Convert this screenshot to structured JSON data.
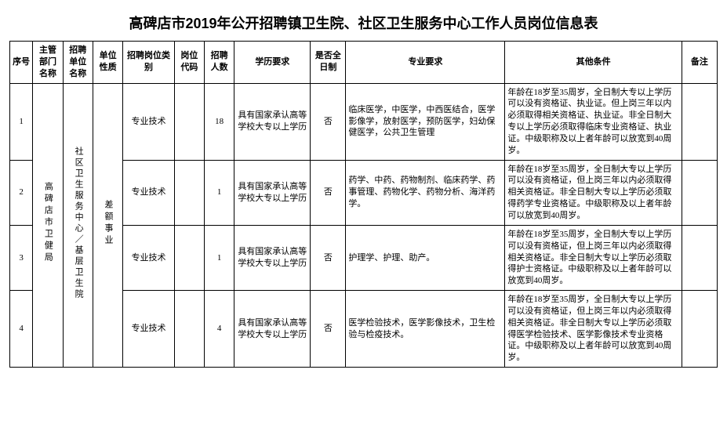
{
  "title": "高碑店市2019年公开招聘镇卫生院、社区卫生服务中心工作人员岗位信息表",
  "headers": {
    "idx": "序号",
    "dept": "主管部门名称",
    "unit": "招聘单位名称",
    "nature": "单位性质",
    "cat": "招聘岗位类别",
    "code": "岗位代码",
    "num": "招聘人数",
    "edu": "学历要求",
    "full": "是否全日制",
    "major": "专业要求",
    "other": "其他条件",
    "remark": "备注"
  },
  "merged": {
    "dept": "高碑店市卫健局",
    "unit": "社区卫生服务中心／基层卫生院",
    "nature": "差额事业"
  },
  "rows": [
    {
      "idx": "1",
      "cat": "专业技术",
      "code": "",
      "num": "18",
      "edu": "具有国家承认高等学校大专以上学历",
      "full": "否",
      "major": "临床医学，中医学，中西医结合，医学影像学，放射医学，预防医学，妇幼保健医学，公共卫生管理",
      "other": "年龄在18岁至35周岁，全日制大专以上学历可以没有资格证、执业证。但上岗三年以内必须取得相关资格证、执业证。非全日制大专以上学历必须取得临床专业资格证、执业证。中级职称及以上者年龄可以放宽到40周岁。",
      "remark": ""
    },
    {
      "idx": "2",
      "cat": "专业技术",
      "code": "",
      "num": "1",
      "edu": "具有国家承认高等学校大专以上学历",
      "full": "否",
      "major": "药学、中药、药物制剂、临床药学、药事管理、药物化学、药物分析、海洋药学。",
      "other": "年龄在18岁至35周岁，全日制大专以上学历可以没有资格证，但上岗三年以内必须取得相关资格证。非全日制大专以上学历必须取得药学专业资格证。中级职称及以上者年龄可以放宽到40周岁。",
      "remark": ""
    },
    {
      "idx": "3",
      "cat": "专业技术",
      "code": "",
      "num": "1",
      "edu": "具有国家承认高等学校大专以上学历",
      "full": "否",
      "major": "护理学、护理、助产。",
      "other": "年龄在18岁至35周岁，全日制大专以上学历可以没有资格证，但上岗三年以内必须取得相关资格证。非全日制大专以上学历必须取得护士资格证。中级职称及以上者年龄可以放宽到40周岁。",
      "remark": ""
    },
    {
      "idx": "4",
      "cat": "专业技术",
      "code": "",
      "num": "4",
      "edu": "具有国家承认高等学校大专以上学历",
      "full": "否",
      "major": "医学检验技术，医学影像技术，卫生检验与检疫技术。",
      "other": "年龄在18岁至35周岁，全日制大专以上学历可以没有资格证，但上岗三年以内必须取得相关资格证。非全日制大专以上学历必须取得医学检验技术、医学影像技术专业资格证。中级职称及以上者年龄可以放宽到40周岁。",
      "remark": ""
    }
  ]
}
